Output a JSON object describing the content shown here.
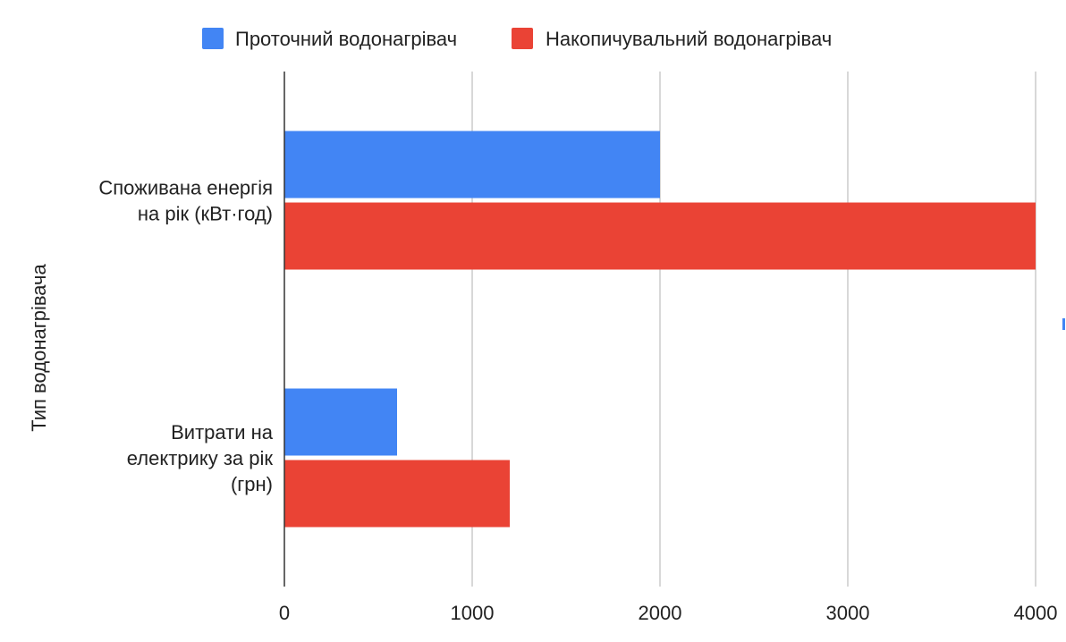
{
  "chart_data": {
    "type": "bar",
    "orientation": "horizontal",
    "categories": [
      "Споживана енергія на рік (кВт·год)",
      "Витрати на електрику за рік (грн)"
    ],
    "category_lines": [
      [
        "Споживана енергія",
        "на рік (кВт·год)"
      ],
      [
        "Витрати на",
        "електрику за рік",
        "(грн)"
      ]
    ],
    "series": [
      {
        "name": "Проточний водонагрівач",
        "color": "#4285f4",
        "values": [
          2000,
          600
        ]
      },
      {
        "name": "Накопичувальний водонагрівач",
        "color": "#ea4335",
        "values": [
          4000,
          1200
        ]
      }
    ],
    "xlim": [
      0,
      4000
    ],
    "xticks": [
      0,
      1000,
      2000,
      3000,
      4000
    ],
    "ylabel": "Тип водонагрівача",
    "xlabel": "",
    "grid": true,
    "legend_position": "top"
  }
}
